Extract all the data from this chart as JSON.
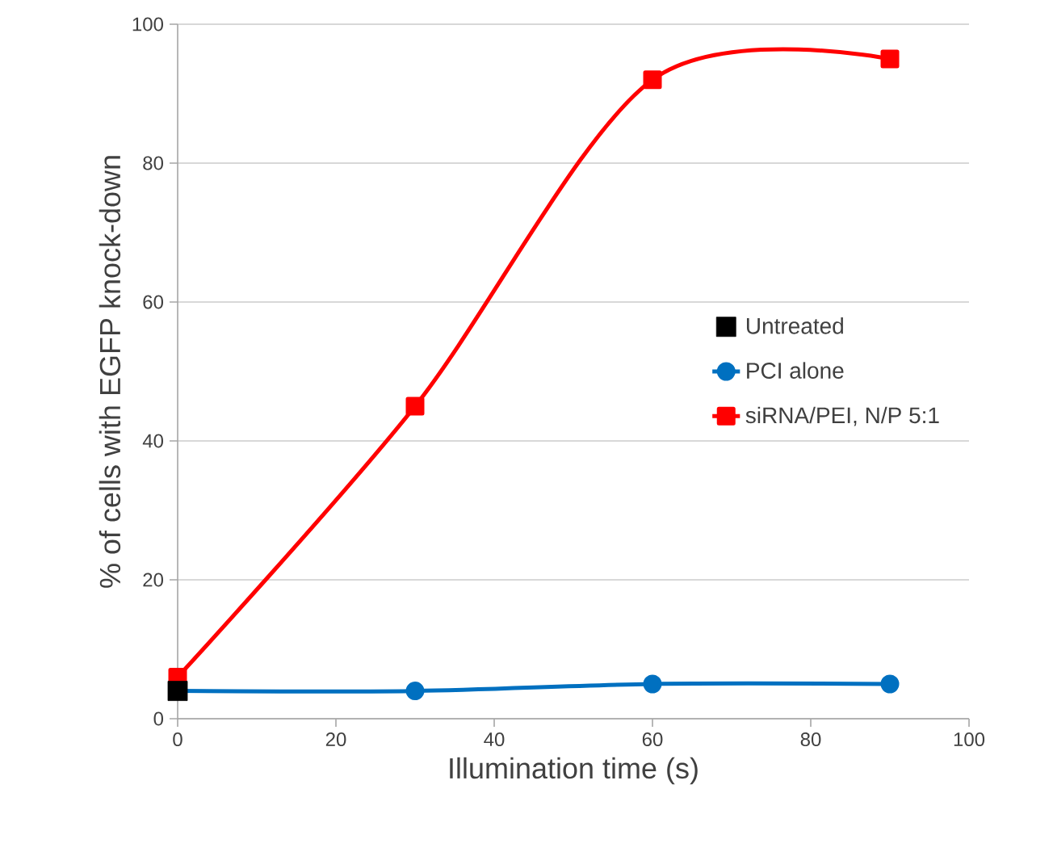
{
  "chart_data": {
    "type": "line",
    "xlabel": "Illumination time (s)",
    "ylabel": "% of cells with EGFP knock-down",
    "xlim": [
      0,
      100
    ],
    "xticks": [
      0,
      20,
      40,
      60,
      80,
      100
    ],
    "ylim": [
      0,
      100
    ],
    "yticks": [
      0,
      20,
      40,
      60,
      80,
      100
    ],
    "grid": "y",
    "legend": "right",
    "series": [
      {
        "name": "Untreated",
        "type": "scatter",
        "marker": "square",
        "color": "#000000",
        "x": [
          0
        ],
        "values": [
          4
        ]
      },
      {
        "name": "PCI alone",
        "marker": "circle",
        "color": "#0070c0",
        "x": [
          0,
          30,
          60,
          90
        ],
        "values": [
          4,
          4,
          5,
          5
        ]
      },
      {
        "name": "siRNA/PEI, N/P 5:1",
        "marker": "square",
        "color": "#ff0000",
        "x": [
          0,
          30,
          60,
          90
        ],
        "values": [
          6,
          45,
          92,
          95
        ]
      }
    ]
  }
}
